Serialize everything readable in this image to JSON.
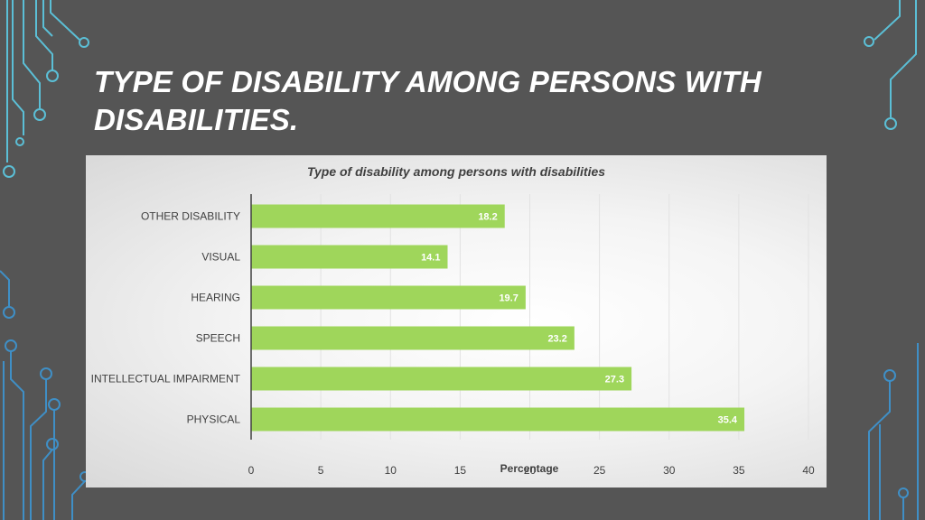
{
  "slide": {
    "title": "TYPE OF DISABILITY AMONG PERSONS WITH DISABILITIES.",
    "background_color": "#555555",
    "circuit_color": "#5bbfd6"
  },
  "chart_data": {
    "type": "bar",
    "orientation": "horizontal",
    "title": "Type of disability among persons with disabilities",
    "xlabel": "Percentage",
    "ylabel": "",
    "categories": [
      "OTHER DISABILITY",
      "VISUAL",
      "HEARING",
      "SPEECH",
      "INTELLECTUAL IMPAIRMENT",
      "PHYSICAL"
    ],
    "values": [
      18.2,
      14.1,
      19.7,
      23.2,
      27.3,
      35.4
    ],
    "xlim": [
      0,
      40
    ],
    "xticks": [
      0,
      5,
      10,
      15,
      20,
      25,
      30,
      35,
      40
    ],
    "bar_color": "#9fd65b",
    "grid": true,
    "data_labels": true
  }
}
